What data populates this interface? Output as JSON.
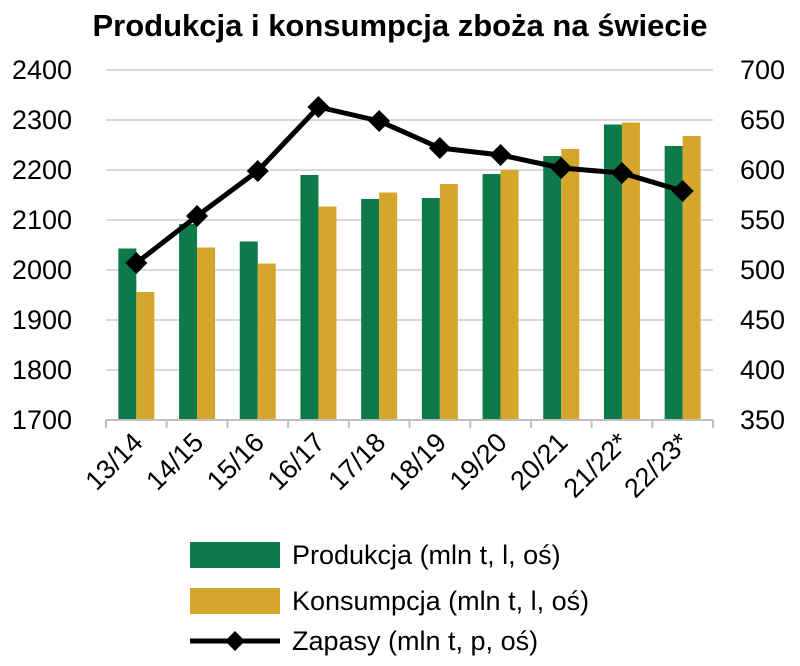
{
  "chart_data": {
    "type": "bar",
    "title": "Produkcja i konsumpcja zboża na świecie",
    "categories": [
      "13/14",
      "14/15",
      "15/16",
      "16/17",
      "17/18",
      "18/19",
      "19/20",
      "20/21",
      "21/22*",
      "22/23*"
    ],
    "series": [
      {
        "name": "Produkcja (mln t, l, oś)",
        "type": "bar",
        "axis": "left",
        "color": "#0e7a4a",
        "values": [
          2043,
          2092,
          2057,
          2190,
          2142,
          2144,
          2192,
          2228,
          2291,
          2248
        ]
      },
      {
        "name": "Konsumpcja (mln t, l, oś)",
        "type": "bar",
        "axis": "left",
        "color": "#d4a72c",
        "values": [
          1956,
          2045,
          2013,
          2127,
          2155,
          2172,
          2200,
          2242,
          2295,
          2268
        ]
      },
      {
        "name": "Zapasy (mln t, p, oś)",
        "type": "line",
        "axis": "right",
        "color": "#000000",
        "marker": "diamond",
        "values": [
          507,
          554,
          599,
          663,
          649,
          622,
          615,
          602,
          597,
          579
        ]
      }
    ],
    "y_left": {
      "min": 1700,
      "max": 2400,
      "ticks": [
        "1700",
        "1800",
        "1900",
        "2000",
        "2100",
        "2200",
        "2300",
        "2400"
      ]
    },
    "y_right": {
      "min": 350,
      "max": 700,
      "ticks": [
        "350",
        "400",
        "450",
        "500",
        "550",
        "600",
        "650",
        "700"
      ]
    },
    "grid": true,
    "legend_position": "bottom"
  }
}
